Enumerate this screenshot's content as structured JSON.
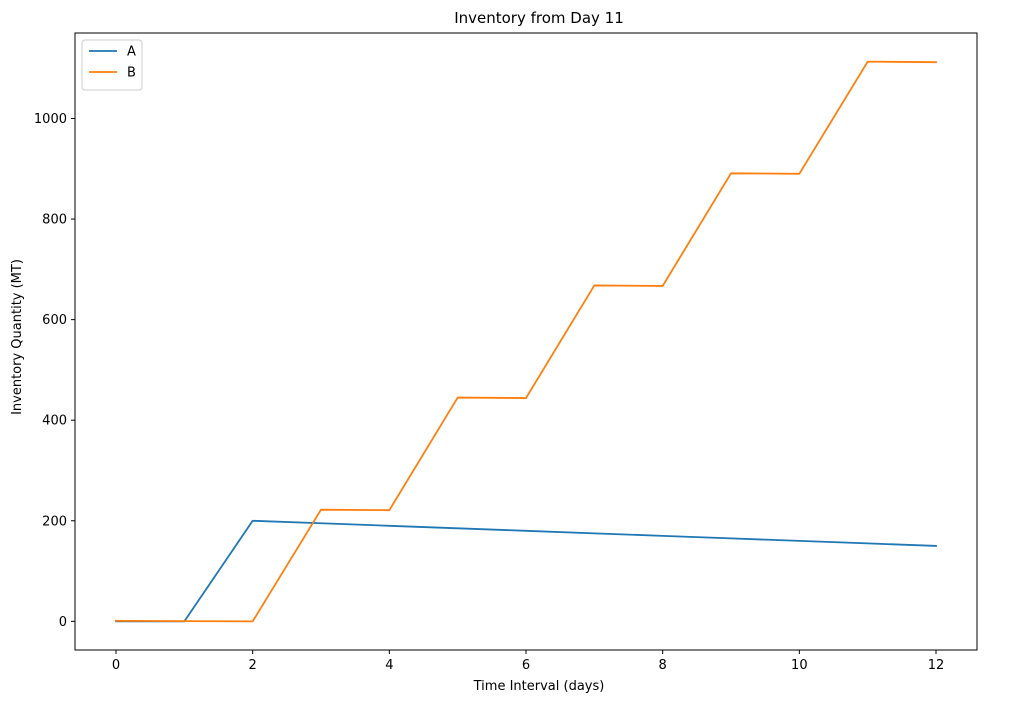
{
  "chart_data": {
    "type": "line",
    "title": "Inventory from Day 11",
    "xlabel": "Time Interval (days)",
    "ylabel": "Inventory Quantity (MT)",
    "xlim": [
      -0.6,
      12.6
    ],
    "ylim": [
      -57,
      1170
    ],
    "xticks": [
      0,
      2,
      4,
      6,
      8,
      10,
      12
    ],
    "yticks": [
      0,
      200,
      400,
      600,
      800,
      1000
    ],
    "grid": false,
    "legend": "upper-left",
    "x": [
      0,
      1,
      2,
      3,
      4,
      5,
      6,
      7,
      8,
      9,
      10,
      11,
      12
    ],
    "series": [
      {
        "name": "A",
        "color": "#1f77b4",
        "values": [
          0,
          0,
          200,
          195,
          190,
          185,
          180,
          175,
          170,
          165,
          160,
          155,
          150
        ]
      },
      {
        "name": "B",
        "color": "#ff7f0e",
        "values": [
          1,
          0.5,
          0,
          222,
          221,
          445,
          444,
          668,
          667,
          891,
          890,
          1113,
          1112
        ]
      }
    ]
  }
}
